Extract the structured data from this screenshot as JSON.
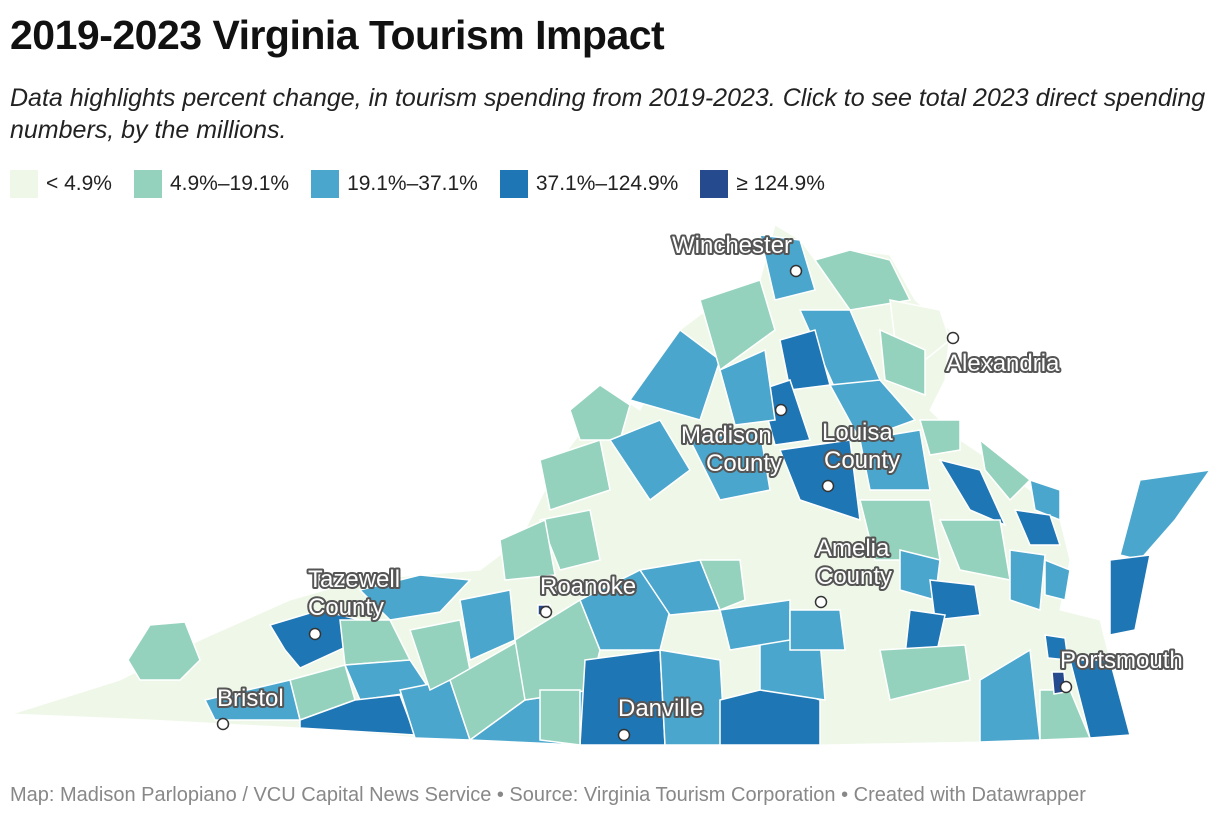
{
  "title": "2019-2023 Virginia Tourism Impact",
  "subtitle": "Data highlights percent change, in tourism spending from 2019-2023. Click to see total 2023 direct spending numbers, by the millions.",
  "legend": [
    {
      "label": "< 4.9%",
      "color": "#eff8e8"
    },
    {
      "label": "4.9%–19.1%",
      "color": "#94d2bd"
    },
    {
      "label": "19.1%–37.1%",
      "color": "#4aa6cc"
    },
    {
      "label": "37.1%–124.9%",
      "color": "#1f76b4"
    },
    {
      "label": "≥ 124.9%",
      "color": "#254a8e"
    }
  ],
  "cities": [
    {
      "name": "Winchester",
      "label": "Winchester"
    },
    {
      "name": "Alexandria",
      "label": "Alexandria"
    },
    {
      "name": "Madison County",
      "label": "Madison\nCounty"
    },
    {
      "name": "Louisa County",
      "label": "Louisa\nCounty"
    },
    {
      "name": "Amelia County",
      "label": "Amelia\nCounty"
    },
    {
      "name": "Tazewell County",
      "label": "Tazewell\nCounty"
    },
    {
      "name": "Roanoke",
      "label": "Roanoke"
    },
    {
      "name": "Portsmouth",
      "label": "Portsmouth"
    },
    {
      "name": "Bristol",
      "label": "Bristol"
    },
    {
      "name": "Danville",
      "label": "Danville"
    }
  ],
  "footer": "Map: Madison Parlopiano / VCU Capital News Service • Source: Virginia Tourism Corporation • Created with Datawrapper"
}
